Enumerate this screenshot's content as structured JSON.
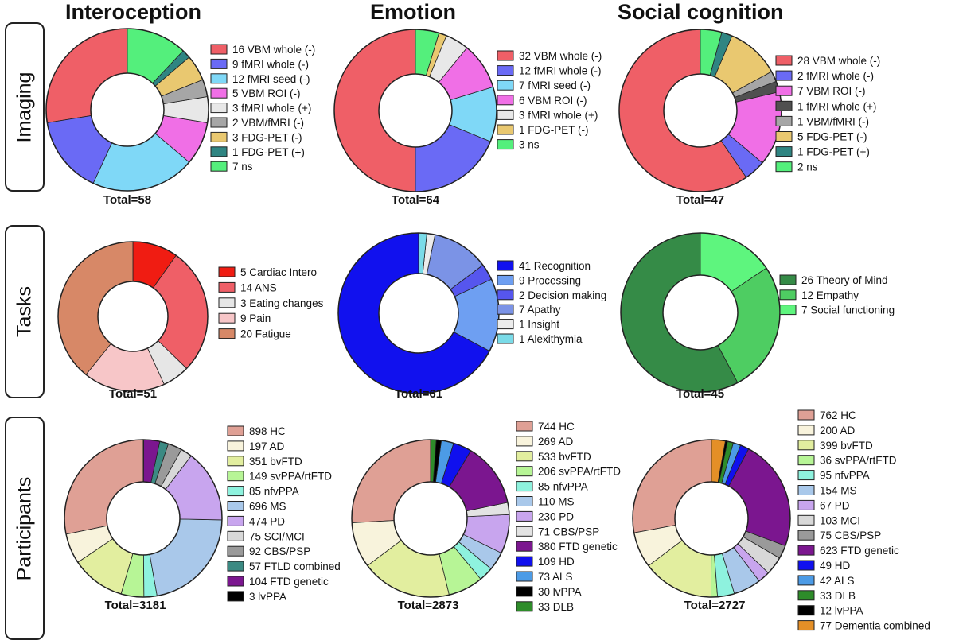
{
  "columns": [
    "Interoception",
    "Emotion",
    "Social cognition"
  ],
  "rows": [
    "Imaging",
    "Tasks",
    "Participants"
  ],
  "chart_data": [
    {
      "type": "pie",
      "id": "imaging-interoception",
      "total": "Total=58",
      "start": 0,
      "clockwise": false,
      "slices": [
        {
          "label": "16 VBM whole (-)",
          "value": 16,
          "color": "#ef5f67"
        },
        {
          "label": "9 fMRI whole (-)",
          "value": 9,
          "color": "#6a6af5"
        },
        {
          "label": "12 fMRI seed (-)",
          "value": 12,
          "color": "#7fd8f7"
        },
        {
          "label": "5 VBM ROI (-)",
          "value": 5,
          "color": "#f06fe6"
        },
        {
          "label": "3 fMRI whole (+)",
          "value": 3,
          "color": "#e8e8e8"
        },
        {
          "label": "2 VBM/fMRI (-)",
          "value": 2,
          "color": "#a6a6a6"
        },
        {
          "label": "3 FDG-PET (-)",
          "value": 3,
          "color": "#e9c870"
        },
        {
          "label": "1 FDG-PET (+)",
          "value": 1,
          "color": "#2f8582"
        },
        {
          "label": "7 ns",
          "value": 7,
          "color": "#54ef7c"
        }
      ]
    },
    {
      "type": "pie",
      "id": "imaging-emotion",
      "total": "Total=64",
      "start": 0,
      "clockwise": false,
      "slices": [
        {
          "label": "32 VBM whole (-)",
          "value": 32,
          "color": "#ef5f67"
        },
        {
          "label": "12 fMRI whole (-)",
          "value": 12,
          "color": "#6a6af5"
        },
        {
          "label": "7 fMRI seed (-)",
          "value": 7,
          "color": "#7fd8f7"
        },
        {
          "label": "6 VBM ROI (-)",
          "value": 6,
          "color": "#f06fe6"
        },
        {
          "label": "3 fMRI whole (+)",
          "value": 3,
          "color": "#e8e8e8"
        },
        {
          "label": "1 FDG-PET (-)",
          "value": 1,
          "color": "#e9c870"
        },
        {
          "label": "3 ns",
          "value": 3,
          "color": "#54ef7c"
        }
      ]
    },
    {
      "type": "pie",
      "id": "imaging-social",
      "total": "Total=47",
      "start": 0,
      "clockwise": false,
      "slices": [
        {
          "label": "28 VBM whole (-)",
          "value": 28,
          "color": "#ef5f67"
        },
        {
          "label": "2 fMRI whole (-)",
          "value": 2,
          "color": "#6a6af5"
        },
        {
          "label": "7 VBM ROI (-)",
          "value": 7,
          "color": "#f06fe6"
        },
        {
          "label": "1 fMRI whole (+)",
          "value": 1,
          "color": "#505050"
        },
        {
          "label": "1 VBM/fMRI (-)",
          "value": 1,
          "color": "#a6a6a6"
        },
        {
          "label": "5 FDG-PET (-)",
          "value": 5,
          "color": "#e9c870"
        },
        {
          "label": "1 FDG-PET (+)",
          "value": 1,
          "color": "#2f8582"
        },
        {
          "label": "2 ns",
          "value": 2,
          "color": "#54ef7c"
        }
      ]
    },
    {
      "type": "pie",
      "id": "tasks-interoception",
      "total": "Total=51",
      "start": 0,
      "clockwise": true,
      "slices": [
        {
          "label": "5 Cardiac Intero",
          "value": 5,
          "color": "#f01c12"
        },
        {
          "label": "14 ANS",
          "value": 14,
          "color": "#ef5f67"
        },
        {
          "label": "3 Eating changes",
          "value": 3,
          "color": "#e6e6e6"
        },
        {
          "label": "9 Pain",
          "value": 9,
          "color": "#f7c6c8"
        },
        {
          "label": "20 Fatigue",
          "value": 20,
          "color": "#d78867"
        }
      ]
    },
    {
      "type": "pie",
      "id": "tasks-emotion",
      "total": "Total=61",
      "start": 0,
      "clockwise": false,
      "slices": [
        {
          "label": "41 Recognition",
          "value": 41,
          "color": "#1111ee"
        },
        {
          "label": "9 Processing",
          "value": 9,
          "color": "#6e9ff2"
        },
        {
          "label": "2 Decision making",
          "value": 2,
          "color": "#5656ee"
        },
        {
          "label": "7 Apathy",
          "value": 7,
          "color": "#7b93e6"
        },
        {
          "label": "1 Insight",
          "value": 1,
          "color": "#ececec"
        },
        {
          "label": "1 Alexithymia",
          "value": 1,
          "color": "#7adbe8"
        }
      ]
    },
    {
      "type": "pie",
      "id": "tasks-social",
      "total": "Total=45",
      "start": 0,
      "clockwise": false,
      "slices": [
        {
          "label": "26 Theory of Mind",
          "value": 26,
          "color": "#358b47"
        },
        {
          "label": "12 Empathy",
          "value": 12,
          "color": "#4ecd62"
        },
        {
          "label": "7 Social functioning",
          "value": 7,
          "color": "#5ef57e"
        }
      ]
    },
    {
      "type": "pie",
      "id": "participants-interoception",
      "total": "Total=3181",
      "start": 0,
      "clockwise": false,
      "slices": [
        {
          "label": "898 HC",
          "value": 898,
          "color": "#dfa095"
        },
        {
          "label": "197 AD",
          "value": 197,
          "color": "#f8f3dc"
        },
        {
          "label": "351 bvFTD",
          "value": 351,
          "color": "#e2ee9f"
        },
        {
          "label": "149 svPPA/rtFTD",
          "value": 149,
          "color": "#b7f596"
        },
        {
          "label": "85 nfvPPA",
          "value": 85,
          "color": "#8ef2de"
        },
        {
          "label": "696 MS",
          "value": 696,
          "color": "#a9c8ea"
        },
        {
          "label": "474 PD",
          "value": 474,
          "color": "#c8a5ee"
        },
        {
          "label": "75 SCI/MCI",
          "value": 75,
          "color": "#d8d8d8"
        },
        {
          "label": "92 CBS/PSP",
          "value": 92,
          "color": "#9a9a9a"
        },
        {
          "label": "57 FTLD combined",
          "value": 57,
          "color": "#3b8a83"
        },
        {
          "label": "104 FTD genetic",
          "value": 104,
          "color": "#7b168f"
        },
        {
          "label": "3 lvPPA",
          "value": 3,
          "color": "#000000"
        }
      ]
    },
    {
      "type": "pie",
      "id": "participants-emotion",
      "total": "Total=2873",
      "start": 0,
      "clockwise": false,
      "slices": [
        {
          "label": "744 HC",
          "value": 744,
          "color": "#dfa095"
        },
        {
          "label": "269 AD",
          "value": 269,
          "color": "#f8f3dc"
        },
        {
          "label": "533 bvFTD",
          "value": 533,
          "color": "#e2ee9f"
        },
        {
          "label": "206 svPPA/rtFTD",
          "value": 206,
          "color": "#b7f596"
        },
        {
          "label": "85 nfvPPA",
          "value": 85,
          "color": "#8ef2de"
        },
        {
          "label": "110 MS",
          "value": 110,
          "color": "#a9c8ea"
        },
        {
          "label": "230 PD",
          "value": 230,
          "color": "#c8a5ee"
        },
        {
          "label": "71 CBS/PSP",
          "value": 71,
          "color": "#e3e3e3"
        },
        {
          "label": "380 FTD genetic",
          "value": 380,
          "color": "#7b168f"
        },
        {
          "label": "109 HD",
          "value": 109,
          "color": "#1010ee"
        },
        {
          "label": "73 ALS",
          "value": 73,
          "color": "#4c9be6"
        },
        {
          "label": "30 lvPPA",
          "value": 30,
          "color": "#000000"
        },
        {
          "label": "33 DLB",
          "value": 33,
          "color": "#2e8c2a"
        }
      ]
    },
    {
      "type": "pie",
      "id": "participants-social",
      "total": "Total=2727",
      "start": 0,
      "clockwise": false,
      "slices": [
        {
          "label": "762 HC",
          "value": 762,
          "color": "#dfa095"
        },
        {
          "label": "200 AD",
          "value": 200,
          "color": "#f8f3dc"
        },
        {
          "label": "399 bvFTD",
          "value": 399,
          "color": "#e2ee9f"
        },
        {
          "label": "36 svPPA/rtFTD",
          "value": 36,
          "color": "#b7f596"
        },
        {
          "label": "95 nfvPPA",
          "value": 95,
          "color": "#8ef2de"
        },
        {
          "label": "154 MS",
          "value": 154,
          "color": "#a9c8ea"
        },
        {
          "label": "67 PD",
          "value": 67,
          "color": "#c8a5ee"
        },
        {
          "label": "103 MCI",
          "value": 103,
          "color": "#d8d8d8"
        },
        {
          "label": "75 CBS/PSP",
          "value": 75,
          "color": "#9a9a9a"
        },
        {
          "label": "623 FTD genetic",
          "value": 623,
          "color": "#7b168f"
        },
        {
          "label": "49 HD",
          "value": 49,
          "color": "#1010ee"
        },
        {
          "label": "42 ALS",
          "value": 42,
          "color": "#4c9be6"
        },
        {
          "label": "33 DLB",
          "value": 33,
          "color": "#2e8c2a"
        },
        {
          "label": "12 lvPPA",
          "value": 12,
          "color": "#000000"
        },
        {
          "label": "77 Dementia combined",
          "value": 77,
          "color": "#e48f27"
        }
      ]
    }
  ]
}
